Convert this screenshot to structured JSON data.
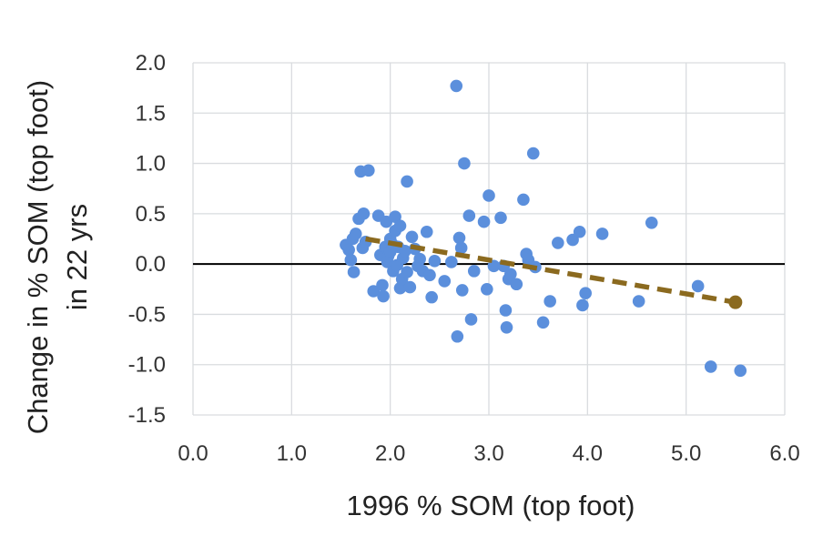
{
  "chart_data": {
    "type": "scatter",
    "title": "",
    "xlabel": "1996 % SOM (top foot)",
    "ylabel_lines": [
      "Change in % SOM (top foot)",
      "in 22 yrs"
    ],
    "xlim": [
      0,
      6
    ],
    "ylim": [
      -1.5,
      2.0
    ],
    "x_ticks": [
      0,
      1,
      2,
      3,
      4,
      5,
      6
    ],
    "y_ticks": [
      -1.5,
      -1.0,
      -0.5,
      0.0,
      0.5,
      1.0,
      1.5,
      2.0
    ],
    "x_tick_labels": [
      "0.0",
      "1.0",
      "2.0",
      "3.0",
      "4.0",
      "5.0",
      "6.0"
    ],
    "y_tick_labels": [
      "-1.5",
      "-1.0",
      "-0.5",
      "0.0",
      "0.5",
      "1.0",
      "1.5",
      "2.0"
    ],
    "grid": true,
    "zero_line": true,
    "colors": {
      "points": "#5b8fdc",
      "trend": "#8b6a1f",
      "grid": "#d9dcdf",
      "zero_line": "#000000"
    },
    "trendline": {
      "x": [
        1.75,
        5.5
      ],
      "y": [
        0.25,
        -0.38
      ],
      "style": "dashed"
    },
    "points": [
      [
        1.55,
        0.19
      ],
      [
        1.58,
        0.14
      ],
      [
        1.6,
        0.04
      ],
      [
        1.62,
        0.25
      ],
      [
        1.63,
        -0.08
      ],
      [
        1.65,
        0.3
      ],
      [
        1.68,
        0.45
      ],
      [
        1.7,
        0.92
      ],
      [
        1.72,
        0.16
      ],
      [
        1.73,
        0.5
      ],
      [
        1.75,
        0.22
      ],
      [
        1.78,
        0.93
      ],
      [
        1.83,
        -0.27
      ],
      [
        1.88,
        0.48
      ],
      [
        1.9,
        0.09
      ],
      [
        1.92,
        -0.21
      ],
      [
        1.93,
        -0.32
      ],
      [
        1.95,
        0.17
      ],
      [
        1.96,
        0.42
      ],
      [
        1.97,
        0.02
      ],
      [
        1.98,
        0.08
      ],
      [
        2.0,
        0.12
      ],
      [
        2.0,
        0.25
      ],
      [
        2.02,
        0.2
      ],
      [
        2.03,
        -0.07
      ],
      [
        2.05,
        0.33
      ],
      [
        2.05,
        0.47
      ],
      [
        2.07,
        -0.01
      ],
      [
        2.08,
        0.17
      ],
      [
        2.1,
        -0.24
      ],
      [
        2.1,
        0.38
      ],
      [
        2.12,
        -0.15
      ],
      [
        2.13,
        0.06
      ],
      [
        2.15,
        0.13
      ],
      [
        2.17,
        -0.08
      ],
      [
        2.17,
        0.82
      ],
      [
        2.2,
        -0.23
      ],
      [
        2.22,
        0.27
      ],
      [
        2.25,
        0.15
      ],
      [
        2.28,
        -0.02
      ],
      [
        2.3,
        0.05
      ],
      [
        2.33,
        -0.07
      ],
      [
        2.37,
        0.32
      ],
      [
        2.4,
        -0.11
      ],
      [
        2.42,
        -0.33
      ],
      [
        2.45,
        0.03
      ],
      [
        2.55,
        -0.17
      ],
      [
        2.62,
        0.02
      ],
      [
        2.67,
        1.77
      ],
      [
        2.68,
        -0.72
      ],
      [
        2.7,
        0.26
      ],
      [
        2.72,
        0.16
      ],
      [
        2.73,
        -0.26
      ],
      [
        2.75,
        1.0
      ],
      [
        2.8,
        0.48
      ],
      [
        2.82,
        -0.55
      ],
      [
        2.85,
        -0.07
      ],
      [
        2.95,
        0.42
      ],
      [
        2.98,
        -0.25
      ],
      [
        3.0,
        0.68
      ],
      [
        3.05,
        -0.02
      ],
      [
        3.12,
        0.46
      ],
      [
        3.15,
        -0.02
      ],
      [
        3.17,
        -0.46
      ],
      [
        3.18,
        -0.63
      ],
      [
        3.2,
        -0.15
      ],
      [
        3.22,
        -0.1
      ],
      [
        3.28,
        -0.2
      ],
      [
        3.35,
        0.64
      ],
      [
        3.38,
        0.1
      ],
      [
        3.4,
        0.04
      ],
      [
        3.45,
        1.1
      ],
      [
        3.47,
        -0.03
      ],
      [
        3.55,
        -0.58
      ],
      [
        3.62,
        -0.37
      ],
      [
        3.7,
        0.21
      ],
      [
        3.85,
        0.24
      ],
      [
        3.92,
        0.32
      ],
      [
        3.95,
        -0.41
      ],
      [
        3.98,
        -0.29
      ],
      [
        4.15,
        0.3
      ],
      [
        4.52,
        -0.37
      ],
      [
        4.65,
        0.41
      ],
      [
        5.12,
        -0.22
      ],
      [
        5.25,
        -1.02
      ],
      [
        5.55,
        -1.06
      ]
    ]
  }
}
